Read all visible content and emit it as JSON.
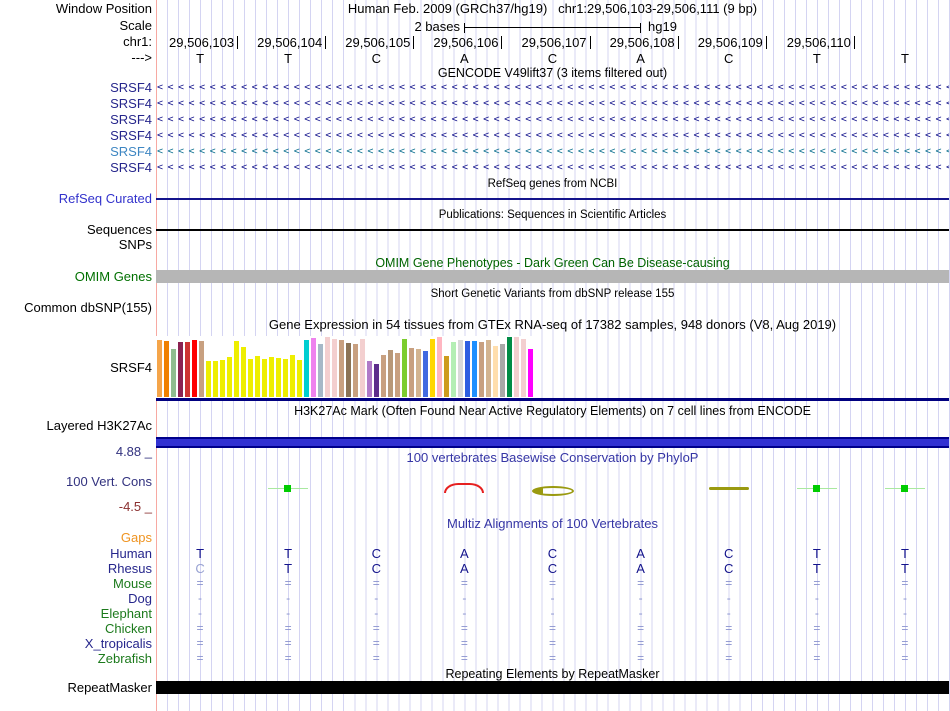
{
  "header": {
    "window_position_label": "Window Position",
    "assembly_title": "Human Feb. 2009 (GRCh37/hg19)",
    "position_title": "chr1:29,506,103-29,506,111 (9 bp)",
    "scale_label": "Scale",
    "scale_bases": "2 bases",
    "scale_assembly": "hg19",
    "chrom_label": "chr1:",
    "strand_label": "--->",
    "positions": [
      "29,506,103",
      "29,506,104",
      "29,506,105",
      "29,506,106",
      "29,506,107",
      "29,506,108",
      "29,506,109",
      "29,506,110"
    ],
    "bases": [
      "T",
      "T",
      "C",
      "A",
      "C",
      "A",
      "C",
      "T",
      "T"
    ]
  },
  "gencode": {
    "title": "GENCODE V49lift37 (3 items filtered out)",
    "arrow_char": "<",
    "gene_rows": [
      {
        "label": "SRSF4",
        "label_color": "#26268c",
        "arrow_color": "#14148c"
      },
      {
        "label": "SRSF4",
        "label_color": "#26268c",
        "arrow_color": "#14148c"
      },
      {
        "label": "SRSF4",
        "label_color": "#26268c",
        "arrow_color": "#14148c"
      },
      {
        "label": "SRSF4",
        "label_color": "#26268c",
        "arrow_color": "#14148c"
      },
      {
        "label": "SRSF4",
        "label_color": "#3e86c2",
        "arrow_color": "#0e7190"
      },
      {
        "label": "SRSF4",
        "label_color": "#26268c",
        "arrow_color": "#14148c"
      }
    ]
  },
  "refseq": {
    "title": "RefSeq genes from NCBI",
    "track_label": "RefSeq Curated",
    "label_color": "#3333cc",
    "line_color": "#14148c"
  },
  "publications": {
    "title": "Publications: Sequences in Scientific Articles",
    "track_label": "Sequences",
    "snps_label": "SNPs"
  },
  "omim": {
    "title": "OMIM Gene Phenotypes - Dark Green Can Be Disease-causing",
    "title_color": "#006400",
    "track_label": "OMIM Genes",
    "label_color": "#007000",
    "bar_color": "#b6b6b6"
  },
  "dbsnp": {
    "title": "Short Genetic Variants from dbSNP release 155",
    "track_label": "Common dbSNP(155)"
  },
  "gtex": {
    "title": "Gene Expression in 54 tissues from GTEx RNA-seq of 17382 samples, 948 donors (V8, Aug 2019)",
    "track_label": "SRSF4",
    "baseline_color": "#000080",
    "bars": [
      {
        "color": "#f5a54a",
        "h": 0.95
      },
      {
        "color": "#f08000",
        "h": 0.93
      },
      {
        "color": "#8fbc8f",
        "h": 0.8
      },
      {
        "color": "#8b2252",
        "h": 0.92
      },
      {
        "color": "#cd3333",
        "h": 0.92
      },
      {
        "color": "#ff0000",
        "h": 0.95
      },
      {
        "color": "#c8a080",
        "h": 0.93
      },
      {
        "color": "#eeee00",
        "h": 0.6
      },
      {
        "color": "#eeee00",
        "h": 0.6
      },
      {
        "color": "#eeee00",
        "h": 0.62
      },
      {
        "color": "#eeee00",
        "h": 0.67
      },
      {
        "color": "#eeee00",
        "h": 0.93
      },
      {
        "color": "#eeee00",
        "h": 0.84
      },
      {
        "color": "#eeee00",
        "h": 0.64
      },
      {
        "color": "#eeee00",
        "h": 0.69
      },
      {
        "color": "#eeee00",
        "h": 0.63
      },
      {
        "color": "#eeee00",
        "h": 0.66
      },
      {
        "color": "#eeee00",
        "h": 0.65
      },
      {
        "color": "#eeee00",
        "h": 0.63
      },
      {
        "color": "#eeee00",
        "h": 0.7
      },
      {
        "color": "#eeee00",
        "h": 0.62
      },
      {
        "color": "#00ced1",
        "h": 0.95
      },
      {
        "color": "#ee82ee",
        "h": 0.98
      },
      {
        "color": "#a6b8c7",
        "h": 0.88
      },
      {
        "color": "#f3cfcf",
        "h": 1.0
      },
      {
        "color": "#f3cfcf",
        "h": 0.97
      },
      {
        "color": "#c8a080",
        "h": 0.95
      },
      {
        "color": "#8b7355",
        "h": 0.9
      },
      {
        "color": "#c8a080",
        "h": 0.88
      },
      {
        "color": "#f3cfcf",
        "h": 0.97
      },
      {
        "color": "#b07ac8",
        "h": 0.6
      },
      {
        "color": "#5d2e8c",
        "h": 0.55
      },
      {
        "color": "#c8a080",
        "h": 0.7
      },
      {
        "color": "#b89878",
        "h": 0.78
      },
      {
        "color": "#c8a080",
        "h": 0.74
      },
      {
        "color": "#7ccd2e",
        "h": 0.97
      },
      {
        "color": "#c8a080",
        "h": 0.82
      },
      {
        "color": "#d3b490",
        "h": 0.8
      },
      {
        "color": "#4169e1",
        "h": 0.77
      },
      {
        "color": "#ffd700",
        "h": 0.97
      },
      {
        "color": "#ffb6c1",
        "h": 1.0
      },
      {
        "color": "#cd9b1d",
        "h": 0.68
      },
      {
        "color": "#b4eeb4",
        "h": 0.92
      },
      {
        "color": "#d9d9d9",
        "h": 0.95
      },
      {
        "color": "#2e5ee1",
        "h": 0.93
      },
      {
        "color": "#1e90ff",
        "h": 0.93
      },
      {
        "color": "#c8a080",
        "h": 0.92
      },
      {
        "color": "#d3b490",
        "h": 0.95
      },
      {
        "color": "#ffdead",
        "h": 0.85
      },
      {
        "color": "#a8a8a8",
        "h": 0.88
      },
      {
        "color": "#008b45",
        "h": 1.0
      },
      {
        "color": "#f3cfcf",
        "h": 1.0
      },
      {
        "color": "#f3cfcf",
        "h": 0.97
      },
      {
        "color": "#ff00ff",
        "h": 0.8
      }
    ]
  },
  "h3k27ac": {
    "title": "H3K27Ac Mark (Often Found Near Active Regulatory Elements) on 7 cell lines from ENCODE",
    "track_label": "Layered H3K27Ac"
  },
  "conservation": {
    "title": "100 vertebrates Basewise Conservation by PhyloP",
    "title_color": "#3535a5",
    "track_label": "100 Vert. Cons",
    "max_label": "4.88 _",
    "min_label": "-4.5 _",
    "label_color": "#32327f",
    "min_label_color": "#8b3030",
    "marks": [
      {
        "col": 2,
        "type": "green-dot"
      },
      {
        "col": 4,
        "type": "red-arc"
      },
      {
        "col": 5,
        "type": "olive-ellipse"
      },
      {
        "col": 7,
        "type": "olive-line"
      },
      {
        "col": 8,
        "type": "green-dot"
      },
      {
        "col": 9,
        "type": "green-dot"
      }
    ]
  },
  "multiz": {
    "title": "Multiz Alignments of 100 Vertebrates",
    "title_color": "#3535a5",
    "gaps_label": "Gaps",
    "gaps_color": "#ef9422",
    "symbol_color": "#8a93ce",
    "base_color": "#14148c",
    "dim_base_color": "#98a2d2",
    "rows": [
      {
        "label": "Human",
        "label_color": "#26268c",
        "kind": "base",
        "cells": [
          "T",
          "T",
          "C",
          "A",
          "C",
          "A",
          "C",
          "T",
          "T"
        ]
      },
      {
        "label": "Rhesus",
        "label_color": "#26268c",
        "kind": "base",
        "dim_first": true,
        "cells": [
          "C",
          "T",
          "C",
          "A",
          "C",
          "A",
          "C",
          "T",
          "T"
        ]
      },
      {
        "label": "Mouse",
        "label_color": "#1c7a1c",
        "kind": "sym",
        "cells": [
          "=",
          "=",
          "=",
          "=",
          "=",
          "=",
          "=",
          "=",
          "="
        ]
      },
      {
        "label": "Dog",
        "label_color": "#26268c",
        "kind": "sym",
        "cells": [
          "-",
          "-",
          "-",
          "-",
          "-",
          "-",
          "-",
          "-",
          "-"
        ]
      },
      {
        "label": "Elephant",
        "label_color": "#1c7a1c",
        "kind": "sym",
        "cells": [
          "-",
          "-",
          "-",
          "-",
          "-",
          "-",
          "-",
          "-",
          "-"
        ]
      },
      {
        "label": "Chicken",
        "label_color": "#1c7a1c",
        "kind": "sym",
        "cells": [
          "=",
          "=",
          "=",
          "=",
          "=",
          "=",
          "=",
          "=",
          "="
        ]
      },
      {
        "label": "X_tropicalis",
        "label_color": "#26268c",
        "kind": "sym",
        "cells": [
          "=",
          "=",
          "=",
          "=",
          "=",
          "=",
          "=",
          "=",
          "="
        ]
      },
      {
        "label": "Zebrafish",
        "label_color": "#1c7a1c",
        "kind": "sym",
        "cells": [
          "=",
          "=",
          "=",
          "=",
          "=",
          "=",
          "=",
          "=",
          "="
        ]
      }
    ]
  },
  "repeatmasker": {
    "title": "Repeating Elements by RepeatMasker",
    "track_label": "RepeatMasker"
  }
}
